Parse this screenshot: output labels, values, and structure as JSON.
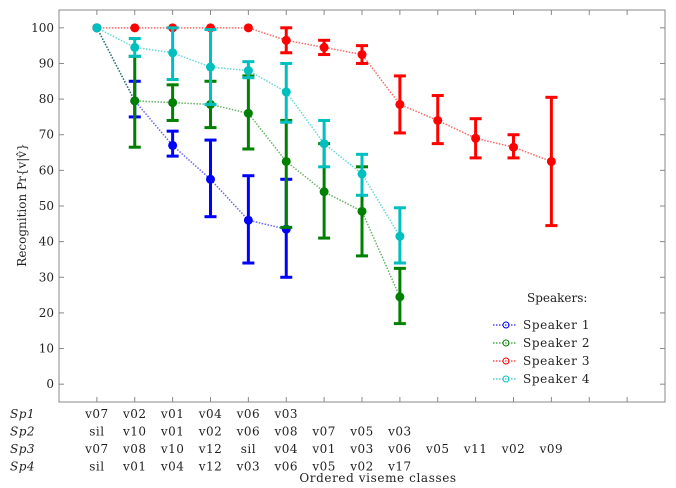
{
  "chart_data": {
    "type": "line",
    "subtype": "errorbar",
    "xlabel": "Ordered viseme classes",
    "ylabel": "Recognition Pr{v|v̂}",
    "ylim": [
      -5,
      105
    ],
    "xlim": [
      0,
      16
    ],
    "yticks": [
      0,
      10,
      20,
      30,
      40,
      50,
      60,
      70,
      80,
      90,
      100
    ],
    "grid": false,
    "legend": {
      "title": "Speakers:",
      "placement": "bottom-right"
    },
    "series": [
      {
        "name": "Speaker 1",
        "row_label": "Sp1",
        "color": "#0000ff",
        "classes": [
          "v07",
          "v02",
          "v01",
          "v04",
          "v06",
          "v03"
        ],
        "values": [
          100,
          79.5,
          67,
          57.5,
          46,
          43.5
        ],
        "lower": [
          100,
          75,
          64,
          47,
          34,
          30
        ],
        "upper": [
          100,
          85,
          71,
          68.5,
          58.5,
          57.5
        ]
      },
      {
        "name": "Speaker 2",
        "row_label": "Sp2",
        "color": "#008000",
        "classes": [
          "sil",
          "v10",
          "v01",
          "v02",
          "v06",
          "v08",
          "v07",
          "v05",
          "v03"
        ],
        "values": [
          100,
          79.5,
          79,
          78.5,
          76,
          62.5,
          54,
          48.5,
          24.5
        ],
        "lower": [
          100,
          66.5,
          74,
          72,
          66,
          44,
          41,
          36,
          17
        ],
        "upper": [
          100,
          92,
          84,
          85,
          86.5,
          74,
          67.5,
          61,
          32.5
        ]
      },
      {
        "name": "Speaker 3",
        "row_label": "Sp3",
        "color": "#ff0000",
        "classes": [
          "v07",
          "v08",
          "v10",
          "v12",
          "sil",
          "v04",
          "v01",
          "v03",
          "v06",
          "v05",
          "v11",
          "v02",
          "v09"
        ],
        "values": [
          100,
          100,
          100,
          100,
          100,
          96.5,
          94.5,
          92.5,
          78.5,
          74,
          69,
          66.5,
          62.5
        ],
        "lower": [
          100,
          100,
          100,
          100,
          100,
          93,
          92.5,
          90,
          70.5,
          67.5,
          63.5,
          63.5,
          44.5
        ],
        "upper": [
          100,
          100,
          100,
          100,
          100,
          100,
          96.5,
          95,
          86.5,
          81,
          74.5,
          70,
          80.5
        ]
      },
      {
        "name": "Speaker 4",
        "row_label": "Sp4",
        "color": "#00bfbf",
        "classes": [
          "sil",
          "v01",
          "v04",
          "v12",
          "v03",
          "v06",
          "v05",
          "v02",
          "v17"
        ],
        "values": [
          100,
          94.5,
          93,
          89,
          88,
          82,
          67.5,
          59,
          41.5
        ],
        "lower": [
          100,
          92,
          85.5,
          78.5,
          86,
          73.5,
          61,
          53,
          34
        ],
        "upper": [
          100,
          97,
          100,
          99.5,
          90.5,
          90,
          74,
          64.5,
          49.5
        ]
      }
    ]
  }
}
